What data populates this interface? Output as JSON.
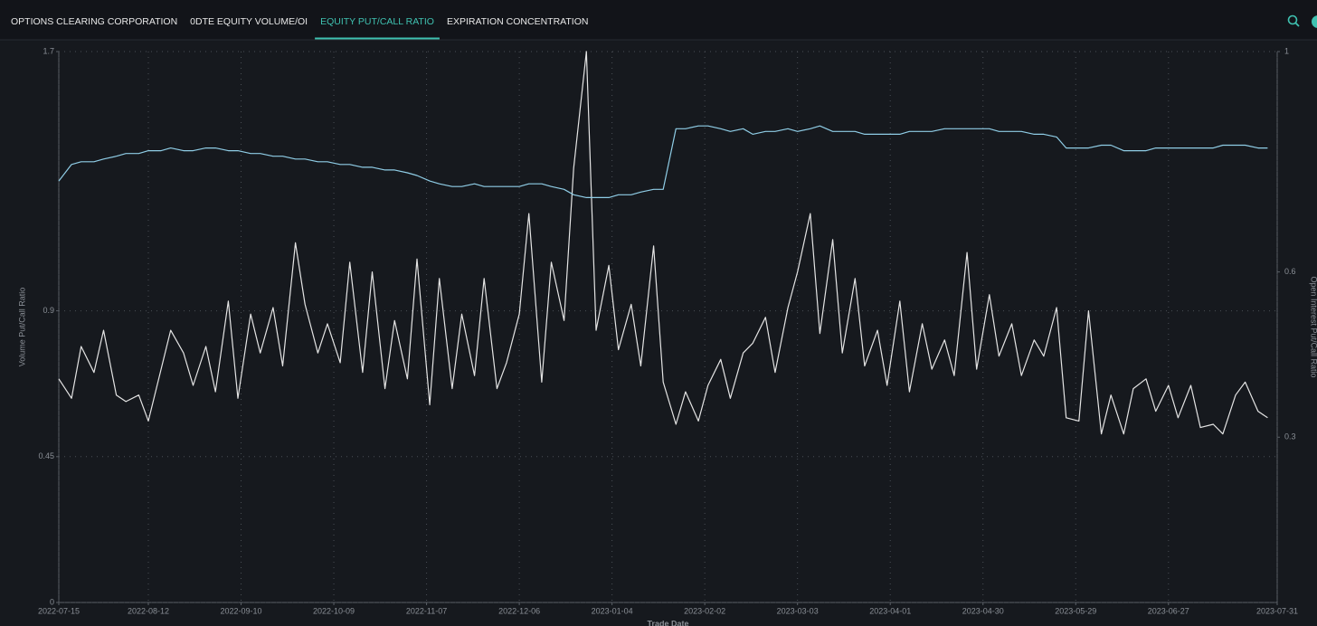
{
  "nav": {
    "tabs": [
      "OPTIONS CLEARING CORPORATION",
      "0DTE EQUITY VOLUME/OI",
      "EQUITY PUT/CALL RATIO",
      "EXPIRATION CONCENTRATION"
    ],
    "active": 2
  },
  "chart_data": {
    "type": "line",
    "x_label": "Trade Date",
    "y_label": "Volume Put/Call Ratio",
    "y2_label": "Open Interest Put/Call Ratio",
    "x": [
      "2022-07-15",
      "2022-07-19",
      "2022-07-22",
      "2022-07-26",
      "2022-07-29",
      "2022-08-02",
      "2022-08-05",
      "2022-08-09",
      "2022-08-12",
      "2022-08-16",
      "2022-08-19",
      "2022-08-23",
      "2022-08-26",
      "2022-08-30",
      "2022-09-02",
      "2022-09-06",
      "2022-09-09",
      "2022-09-13",
      "2022-09-16",
      "2022-09-20",
      "2022-09-23",
      "2022-09-27",
      "2022-09-30",
      "2022-10-04",
      "2022-10-07",
      "2022-10-11",
      "2022-10-14",
      "2022-10-18",
      "2022-10-21",
      "2022-10-25",
      "2022-10-28",
      "2022-11-01",
      "2022-11-04",
      "2022-11-08",
      "2022-11-11",
      "2022-11-15",
      "2022-11-18",
      "2022-11-22",
      "2022-11-25",
      "2022-11-29",
      "2022-12-02",
      "2022-12-06",
      "2022-12-09",
      "2022-12-13",
      "2022-12-16",
      "2022-12-20",
      "2022-12-23",
      "2022-12-27",
      "2022-12-30",
      "2023-01-03",
      "2023-01-06",
      "2023-01-10",
      "2023-01-13",
      "2023-01-17",
      "2023-01-20",
      "2023-01-24",
      "2023-01-27",
      "2023-01-31",
      "2023-02-03",
      "2023-02-07",
      "2023-02-10",
      "2023-02-14",
      "2023-02-17",
      "2023-02-21",
      "2023-02-24",
      "2023-02-28",
      "2023-03-03",
      "2023-03-07",
      "2023-03-10",
      "2023-03-14",
      "2023-03-17",
      "2023-03-21",
      "2023-03-24",
      "2023-03-28",
      "2023-03-31",
      "2023-04-04",
      "2023-04-07",
      "2023-04-11",
      "2023-04-14",
      "2023-04-18",
      "2023-04-21",
      "2023-04-25",
      "2023-04-28",
      "2023-05-02",
      "2023-05-05",
      "2023-05-09",
      "2023-05-12",
      "2023-05-16",
      "2023-05-19",
      "2023-05-23",
      "2023-05-26",
      "2023-05-30",
      "2023-06-02",
      "2023-06-06",
      "2023-06-09",
      "2023-06-13",
      "2023-06-16",
      "2023-06-20",
      "2023-06-23",
      "2023-06-27",
      "2023-06-30",
      "2023-07-04",
      "2023-07-07",
      "2023-07-11",
      "2023-07-14",
      "2023-07-18",
      "2023-07-21",
      "2023-07-25",
      "2023-07-28"
    ],
    "series": [
      {
        "color": "#e4e4e4",
        "values": [
          0.69,
          0.63,
          0.79,
          0.71,
          0.84,
          0.64,
          0.62,
          0.64,
          0.56,
          0.72,
          0.84,
          0.77,
          0.67,
          0.79,
          0.65,
          0.93,
          0.63,
          0.89,
          0.77,
          0.91,
          0.73,
          1.11,
          0.92,
          0.77,
          0.86,
          0.74,
          1.05,
          0.71,
          1.02,
          0.66,
          0.87,
          0.69,
          1.06,
          0.61,
          1.0,
          0.66,
          0.89,
          0.7,
          1.0,
          0.66,
          0.74,
          0.89,
          1.2,
          0.68,
          1.05,
          0.87,
          1.34,
          1.7,
          0.84,
          1.04,
          0.78,
          0.92,
          0.73,
          1.1,
          0.68,
          0.55,
          0.65,
          0.56,
          0.67,
          0.75,
          0.63,
          0.77,
          0.8,
          0.88,
          0.71,
          0.91,
          1.02,
          1.2,
          0.83,
          1.12,
          0.77,
          1.0,
          0.73,
          0.84,
          0.67,
          0.93,
          0.65,
          0.86,
          0.72,
          0.81,
          0.7,
          1.08,
          0.72,
          0.95,
          0.76,
          0.86,
          0.7,
          0.81,
          0.76,
          0.91,
          0.57,
          0.56,
          0.9,
          0.52,
          0.64,
          0.52,
          0.66,
          0.69,
          0.59,
          0.67,
          0.57,
          0.67,
          0.54,
          0.55,
          0.52,
          0.64,
          0.68,
          0.59,
          0.57
        ]
      },
      {
        "color": "#8fcde6",
        "axis": "y2",
        "values": [
          0.765,
          0.795,
          0.8,
          0.8,
          0.805,
          0.81,
          0.815,
          0.815,
          0.82,
          0.82,
          0.825,
          0.82,
          0.82,
          0.825,
          0.825,
          0.82,
          0.82,
          0.815,
          0.815,
          0.81,
          0.81,
          0.805,
          0.805,
          0.8,
          0.8,
          0.795,
          0.795,
          0.79,
          0.79,
          0.785,
          0.785,
          0.78,
          0.775,
          0.765,
          0.76,
          0.755,
          0.755,
          0.76,
          0.755,
          0.755,
          0.755,
          0.755,
          0.76,
          0.76,
          0.755,
          0.75,
          0.74,
          0.735,
          0.735,
          0.735,
          0.74,
          0.74,
          0.745,
          0.75,
          0.75,
          0.86,
          0.86,
          0.865,
          0.865,
          0.86,
          0.855,
          0.86,
          0.85,
          0.855,
          0.855,
          0.86,
          0.855,
          0.86,
          0.865,
          0.855,
          0.855,
          0.855,
          0.85,
          0.85,
          0.85,
          0.85,
          0.855,
          0.855,
          0.855,
          0.86,
          0.86,
          0.86,
          0.86,
          0.86,
          0.855,
          0.855,
          0.855,
          0.85,
          0.85,
          0.845,
          0.825,
          0.825,
          0.825,
          0.83,
          0.83,
          0.82,
          0.82,
          0.82,
          0.825,
          0.825,
          0.825,
          0.825,
          0.825,
          0.825,
          0.83,
          0.83,
          0.83,
          0.825,
          0.825
        ]
      }
    ],
    "xlim": [
      "2022-07-15",
      "2023-07-31"
    ],
    "xticks": [
      "2022-07-15",
      "2022-08-12",
      "2022-09-10",
      "2022-10-09",
      "2022-11-07",
      "2022-12-06",
      "2023-01-04",
      "2023-02-02",
      "2023-03-03",
      "2023-04-01",
      "2023-04-30",
      "2023-05-29",
      "2023-06-27",
      "2023-07-31"
    ],
    "ylim": [
      0,
      1.7
    ],
    "yticks": [
      0,
      0.45,
      0.9,
      1.7
    ],
    "y2lim": [
      0,
      1
    ],
    "y2ticks": [
      0.3,
      0.6,
      1
    ],
    "grid": true
  }
}
